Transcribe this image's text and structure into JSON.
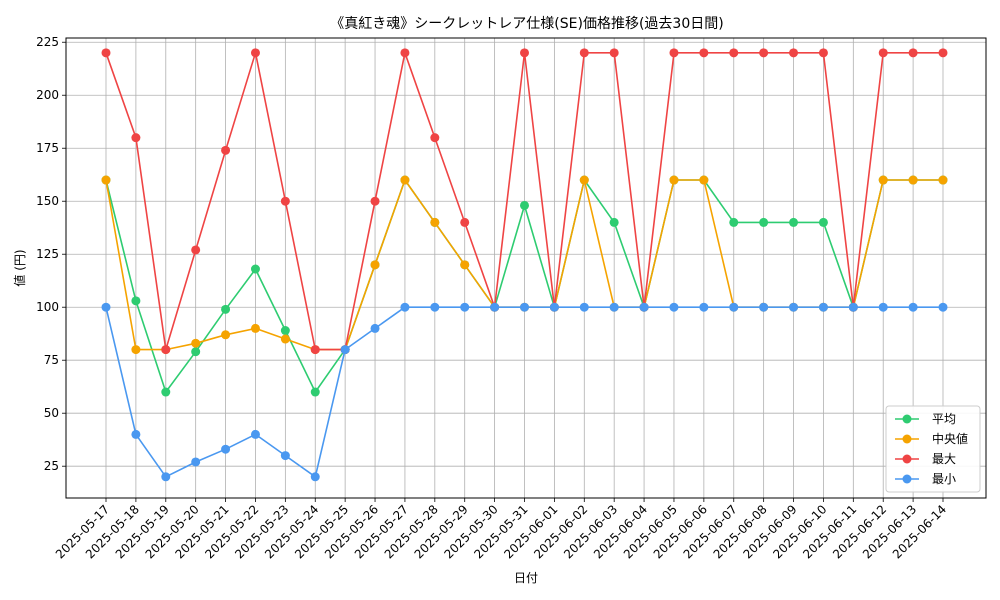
{
  "chart_data": {
    "type": "line",
    "title": "《真紅き魂》シークレットレア仕様(SE)価格推移(過去30日間)",
    "xlabel": "日付",
    "ylabel": "値 (円)",
    "ylim": [
      10,
      227
    ],
    "yticks": [
      25,
      50,
      75,
      100,
      125,
      150,
      175,
      200,
      225
    ],
    "grid": true,
    "legend_position": "lower-right",
    "categories": [
      "2025-05-17",
      "2025-05-18",
      "2025-05-19",
      "2025-05-20",
      "2025-05-21",
      "2025-05-22",
      "2025-05-23",
      "2025-05-24",
      "2025-05-25",
      "2025-05-26",
      "2025-05-27",
      "2025-05-28",
      "2025-05-29",
      "2025-05-30",
      "2025-05-31",
      "2025-06-01",
      "2025-06-02",
      "2025-06-03",
      "2025-06-04",
      "2025-06-05",
      "2025-06-06",
      "2025-06-07",
      "2025-06-08",
      "2025-06-09",
      "2025-06-10",
      "2025-06-11",
      "2025-06-12",
      "2025-06-13",
      "2025-06-14"
    ],
    "series": [
      {
        "name": "平均",
        "color": "#2ecc71",
        "values": [
          160,
          103,
          60,
          79,
          99,
          118,
          89,
          60,
          80,
          120,
          160,
          140,
          120,
          100,
          148,
          100,
          160,
          140,
          100,
          160,
          160,
          140,
          140,
          140,
          140,
          100,
          160,
          160,
          160
        ]
      },
      {
        "name": "中央値",
        "color": "#f5a300",
        "values": [
          160,
          80,
          80,
          83,
          87,
          90,
          85,
          80,
          80,
          120,
          160,
          140,
          120,
          100,
          100,
          100,
          160,
          100,
          100,
          160,
          160,
          100,
          100,
          100,
          100,
          100,
          160,
          160,
          160
        ]
      },
      {
        "name": "最大",
        "color": "#ef4444",
        "values": [
          220,
          180,
          80,
          127,
          174,
          220,
          150,
          80,
          80,
          150,
          220,
          180,
          140,
          100,
          220,
          100,
          220,
          220,
          100,
          220,
          220,
          220,
          220,
          220,
          220,
          100,
          220,
          220,
          220
        ]
      },
      {
        "name": "最小",
        "color": "#4a98f0",
        "values": [
          100,
          40,
          20,
          27,
          33,
          40,
          30,
          20,
          80,
          90,
          100,
          100,
          100,
          100,
          100,
          100,
          100,
          100,
          100,
          100,
          100,
          100,
          100,
          100,
          100,
          100,
          100,
          100,
          100
        ]
      }
    ]
  }
}
